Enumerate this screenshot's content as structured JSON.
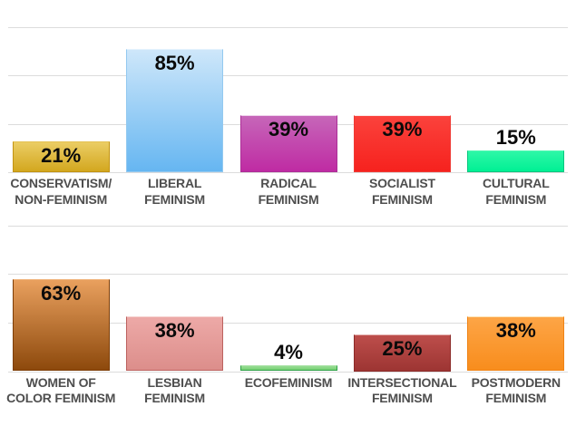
{
  "figure": {
    "background_color": "#ffffff",
    "gridline_color": "#dcdcdc",
    "value_label_color": "#0a0a0a",
    "category_label_color": "#4e4e4e"
  },
  "chart_data": [
    {
      "type": "bar",
      "title": "",
      "xlabel": "",
      "ylabel": "",
      "ylim": [
        0,
        100
      ],
      "grid": true,
      "gridlines_pct": [
        0,
        33.33,
        66.67,
        100
      ],
      "legend_position": "none",
      "categories": [
        "CONSERVATISM/\nNON-FEMINISM",
        "LIBERAL\nFEMINISM",
        "RADICAL\nFEMINISM",
        "SOCIALIST\nFEMINISM",
        "CULTURAL\nFEMINISM"
      ],
      "values": [
        21,
        85,
        39,
        39,
        15
      ],
      "data_labels": [
        "21%",
        "85%",
        "39%",
        "39%",
        "15%"
      ],
      "bars": [
        {
          "id": "conservatism-non-feminism",
          "category": "CONSERVATISM/\nNON-FEMINISM",
          "value": 21,
          "data_label": "21%",
          "fill_top": "#EBCD64",
          "fill_bottom": "#D3A71F",
          "border": "#C29312",
          "top_edge": "#E5C252"
        },
        {
          "id": "liberal-feminism",
          "category": "LIBERAL\nFEMINISM",
          "value": 85,
          "data_label": "85%",
          "fill_top": "#CEE7FA",
          "fill_bottom": "#66B6F1",
          "border": "#93C9F0",
          "top_edge": "#E4F2FD"
        },
        {
          "id": "radical-feminism",
          "category": "RADICAL\nFEMINISM",
          "value": 39,
          "data_label": "39%",
          "fill_top": "#C666B9",
          "fill_bottom": "#BF2BA3",
          "border": "#AC2F97",
          "top_edge": "#EFD3EC"
        },
        {
          "id": "socialist-feminism",
          "category": "SOCIALIST\nFEMINISM",
          "value": 39,
          "data_label": "39%",
          "fill_top": "#FB423C",
          "fill_bottom": "#F6221E",
          "border": "#EF3A34",
          "top_edge": "#FCE9E6"
        },
        {
          "id": "cultural-feminism",
          "category": "CULTURAL\nFEMINISM",
          "value": 15,
          "data_label": "15%",
          "fill_top": "#2EF7A7",
          "fill_bottom": "#00F094",
          "border": "#0BC57F",
          "top_edge": "#4FF9B2"
        }
      ]
    },
    {
      "type": "bar",
      "title": "",
      "xlabel": "",
      "ylabel": "",
      "ylim": [
        0,
        100
      ],
      "grid": true,
      "gridlines_pct": [
        0,
        33.33,
        66.67,
        100
      ],
      "legend_position": "none",
      "categories": [
        "WOMEN OF\nCOLOR FEMINISM",
        "LESBIAN\nFEMINISM",
        "ECOFEMINISM",
        "INTERSECTIONAL\nFEMINISM",
        "POSTMODERN\nFEMINISM"
      ],
      "values": [
        63,
        38,
        4,
        25,
        38
      ],
      "data_labels": [
        "63%",
        "38%",
        "4%",
        "25%",
        "38%"
      ],
      "bars": [
        {
          "id": "women-of-color-feminism",
          "category": "WOMEN OF\nCOLOR FEMINISM",
          "value": 63,
          "data_label": "63%",
          "fill_top": "#E9A05E",
          "fill_bottom": "#8D490C",
          "border": "#7C3D07",
          "top_edge": "#F0B279"
        },
        {
          "id": "lesbian-feminism",
          "category": "LESBIAN\nFEMINISM",
          "value": 38,
          "data_label": "38%",
          "fill_top": "#EDA9A7",
          "fill_bottom": "#DC8E8B",
          "border": "#BC625F",
          "top_edge": "#F6D2D0"
        },
        {
          "id": "ecofeminism",
          "category": "ECOFEMINISM",
          "value": 4,
          "data_label": "4%",
          "fill_top": "#98DC95",
          "fill_bottom": "#77D073",
          "border": "#2FA047",
          "top_edge": "#A8E2A5"
        },
        {
          "id": "intersectional-feminism",
          "category": "INTERSECTIONAL\nFEMINISM",
          "value": 25,
          "data_label": "25%",
          "fill_top": "#BD4E4B",
          "fill_bottom": "#9D3533",
          "border": "#8C2B29",
          "top_edge": "#E3AFAD"
        },
        {
          "id": "postmodern-feminism",
          "category": "POSTMODERN\nFEMINISM",
          "value": 38,
          "data_label": "38%",
          "fill_top": "#FDA546",
          "fill_bottom": "#F88D1D",
          "border": "#EF8316",
          "top_edge": "#FEE3B4"
        }
      ]
    }
  ]
}
